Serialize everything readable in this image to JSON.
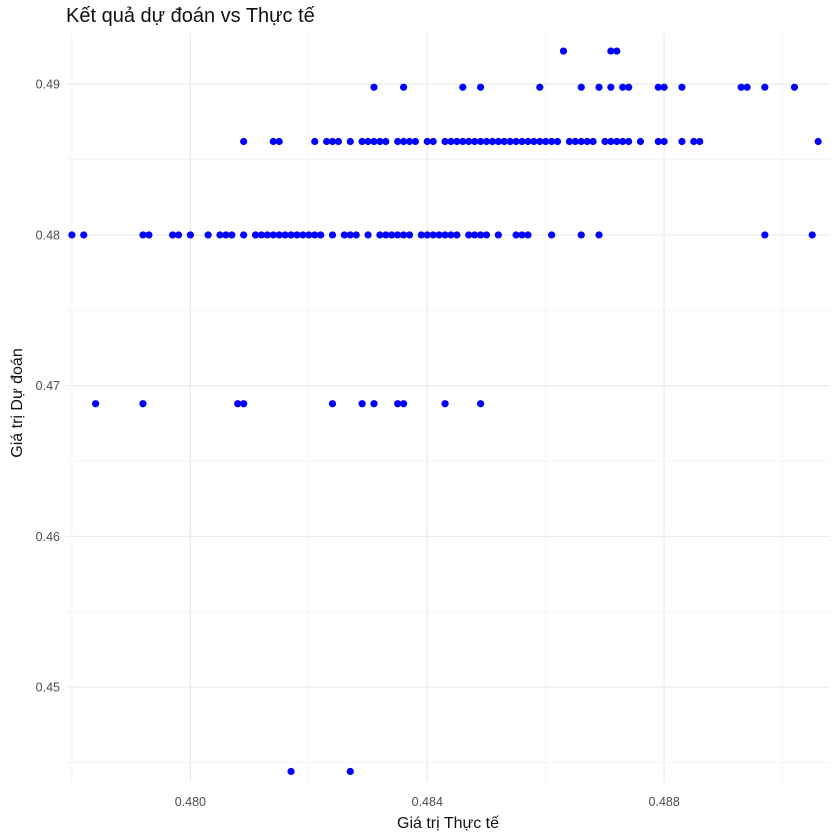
{
  "chart_data": {
    "type": "scatter",
    "title": "Kết quả dự đoán vs Thực tế",
    "xlabel": "Giá trị Thực tế",
    "ylabel": "Giá trị Dự đoán",
    "xlim": [
      0.4779,
      0.4908
    ],
    "ylim": [
      0.4437,
      0.4934
    ],
    "x_ticks": [
      0.48,
      0.484,
      0.488
    ],
    "x_tick_labels": [
      "0.480",
      "0.484",
      "0.488"
    ],
    "y_ticks": [
      0.45,
      0.46,
      0.47,
      0.48,
      0.49
    ],
    "y_tick_labels": [
      "0.45",
      "0.46",
      "0.47",
      "0.48",
      "0.49"
    ],
    "grid": true,
    "point_color": "#0000ff",
    "points": [
      [
        0.4863,
        0.4922
      ],
      [
        0.4871,
        0.4922
      ],
      [
        0.4872,
        0.4922
      ],
      [
        0.4831,
        0.4898
      ],
      [
        0.4836,
        0.4898
      ],
      [
        0.4846,
        0.4898
      ],
      [
        0.4849,
        0.4898
      ],
      [
        0.4859,
        0.4898
      ],
      [
        0.4866,
        0.4898
      ],
      [
        0.4869,
        0.4898
      ],
      [
        0.4871,
        0.4898
      ],
      [
        0.4873,
        0.4898
      ],
      [
        0.4874,
        0.4898
      ],
      [
        0.4879,
        0.4898
      ],
      [
        0.488,
        0.4898
      ],
      [
        0.4883,
        0.4898
      ],
      [
        0.4893,
        0.4898
      ],
      [
        0.4894,
        0.4898
      ],
      [
        0.4897,
        0.4898
      ],
      [
        0.4902,
        0.4898
      ],
      [
        0.4809,
        0.4862
      ],
      [
        0.4814,
        0.4862
      ],
      [
        0.4815,
        0.4862
      ],
      [
        0.4821,
        0.4862
      ],
      [
        0.4823,
        0.4862
      ],
      [
        0.4824,
        0.4862
      ],
      [
        0.4825,
        0.4862
      ],
      [
        0.4827,
        0.4862
      ],
      [
        0.4829,
        0.4862
      ],
      [
        0.483,
        0.4862
      ],
      [
        0.4831,
        0.4862
      ],
      [
        0.4832,
        0.4862
      ],
      [
        0.4833,
        0.4862
      ],
      [
        0.4835,
        0.4862
      ],
      [
        0.4836,
        0.4862
      ],
      [
        0.4837,
        0.4862
      ],
      [
        0.4838,
        0.4862
      ],
      [
        0.484,
        0.4862
      ],
      [
        0.4841,
        0.4862
      ],
      [
        0.4843,
        0.4862
      ],
      [
        0.4844,
        0.4862
      ],
      [
        0.4845,
        0.4862
      ],
      [
        0.4846,
        0.4862
      ],
      [
        0.4847,
        0.4862
      ],
      [
        0.4848,
        0.4862
      ],
      [
        0.4849,
        0.4862
      ],
      [
        0.485,
        0.4862
      ],
      [
        0.4851,
        0.4862
      ],
      [
        0.4852,
        0.4862
      ],
      [
        0.4853,
        0.4862
      ],
      [
        0.4854,
        0.4862
      ],
      [
        0.4855,
        0.4862
      ],
      [
        0.4856,
        0.4862
      ],
      [
        0.4857,
        0.4862
      ],
      [
        0.4858,
        0.4862
      ],
      [
        0.4859,
        0.4862
      ],
      [
        0.486,
        0.4862
      ],
      [
        0.4861,
        0.4862
      ],
      [
        0.4862,
        0.4862
      ],
      [
        0.4864,
        0.4862
      ],
      [
        0.4865,
        0.4862
      ],
      [
        0.4866,
        0.4862
      ],
      [
        0.4867,
        0.4862
      ],
      [
        0.4868,
        0.4862
      ],
      [
        0.487,
        0.4862
      ],
      [
        0.4871,
        0.4862
      ],
      [
        0.4872,
        0.4862
      ],
      [
        0.4873,
        0.4862
      ],
      [
        0.4874,
        0.4862
      ],
      [
        0.4876,
        0.4862
      ],
      [
        0.4879,
        0.4862
      ],
      [
        0.488,
        0.4862
      ],
      [
        0.4883,
        0.4862
      ],
      [
        0.4885,
        0.4862
      ],
      [
        0.4886,
        0.4862
      ],
      [
        0.4906,
        0.4862
      ],
      [
        0.478,
        0.48
      ],
      [
        0.4782,
        0.48
      ],
      [
        0.4792,
        0.48
      ],
      [
        0.4793,
        0.48
      ],
      [
        0.4797,
        0.48
      ],
      [
        0.4798,
        0.48
      ],
      [
        0.48,
        0.48
      ],
      [
        0.4803,
        0.48
      ],
      [
        0.4805,
        0.48
      ],
      [
        0.4806,
        0.48
      ],
      [
        0.4807,
        0.48
      ],
      [
        0.4809,
        0.48
      ],
      [
        0.4811,
        0.48
      ],
      [
        0.4812,
        0.48
      ],
      [
        0.4813,
        0.48
      ],
      [
        0.4814,
        0.48
      ],
      [
        0.4815,
        0.48
      ],
      [
        0.4816,
        0.48
      ],
      [
        0.4817,
        0.48
      ],
      [
        0.4818,
        0.48
      ],
      [
        0.4819,
        0.48
      ],
      [
        0.482,
        0.48
      ],
      [
        0.4821,
        0.48
      ],
      [
        0.4822,
        0.48
      ],
      [
        0.4824,
        0.48
      ],
      [
        0.4826,
        0.48
      ],
      [
        0.4827,
        0.48
      ],
      [
        0.4828,
        0.48
      ],
      [
        0.483,
        0.48
      ],
      [
        0.4832,
        0.48
      ],
      [
        0.4833,
        0.48
      ],
      [
        0.4834,
        0.48
      ],
      [
        0.4835,
        0.48
      ],
      [
        0.4836,
        0.48
      ],
      [
        0.4837,
        0.48
      ],
      [
        0.4839,
        0.48
      ],
      [
        0.484,
        0.48
      ],
      [
        0.4841,
        0.48
      ],
      [
        0.4842,
        0.48
      ],
      [
        0.4843,
        0.48
      ],
      [
        0.4844,
        0.48
      ],
      [
        0.4845,
        0.48
      ],
      [
        0.4847,
        0.48
      ],
      [
        0.4848,
        0.48
      ],
      [
        0.4849,
        0.48
      ],
      [
        0.485,
        0.48
      ],
      [
        0.4852,
        0.48
      ],
      [
        0.4855,
        0.48
      ],
      [
        0.4856,
        0.48
      ],
      [
        0.4857,
        0.48
      ],
      [
        0.4861,
        0.48
      ],
      [
        0.4866,
        0.48
      ],
      [
        0.4869,
        0.48
      ],
      [
        0.4897,
        0.48
      ],
      [
        0.4905,
        0.48
      ],
      [
        0.4784,
        0.4688
      ],
      [
        0.4792,
        0.4688
      ],
      [
        0.4808,
        0.4688
      ],
      [
        0.4809,
        0.4688
      ],
      [
        0.4824,
        0.4688
      ],
      [
        0.4829,
        0.4688
      ],
      [
        0.4831,
        0.4688
      ],
      [
        0.4835,
        0.4688
      ],
      [
        0.4836,
        0.4688
      ],
      [
        0.4843,
        0.4688
      ],
      [
        0.4849,
        0.4688
      ],
      [
        0.4817,
        0.4444
      ],
      [
        0.4827,
        0.4444
      ]
    ]
  }
}
